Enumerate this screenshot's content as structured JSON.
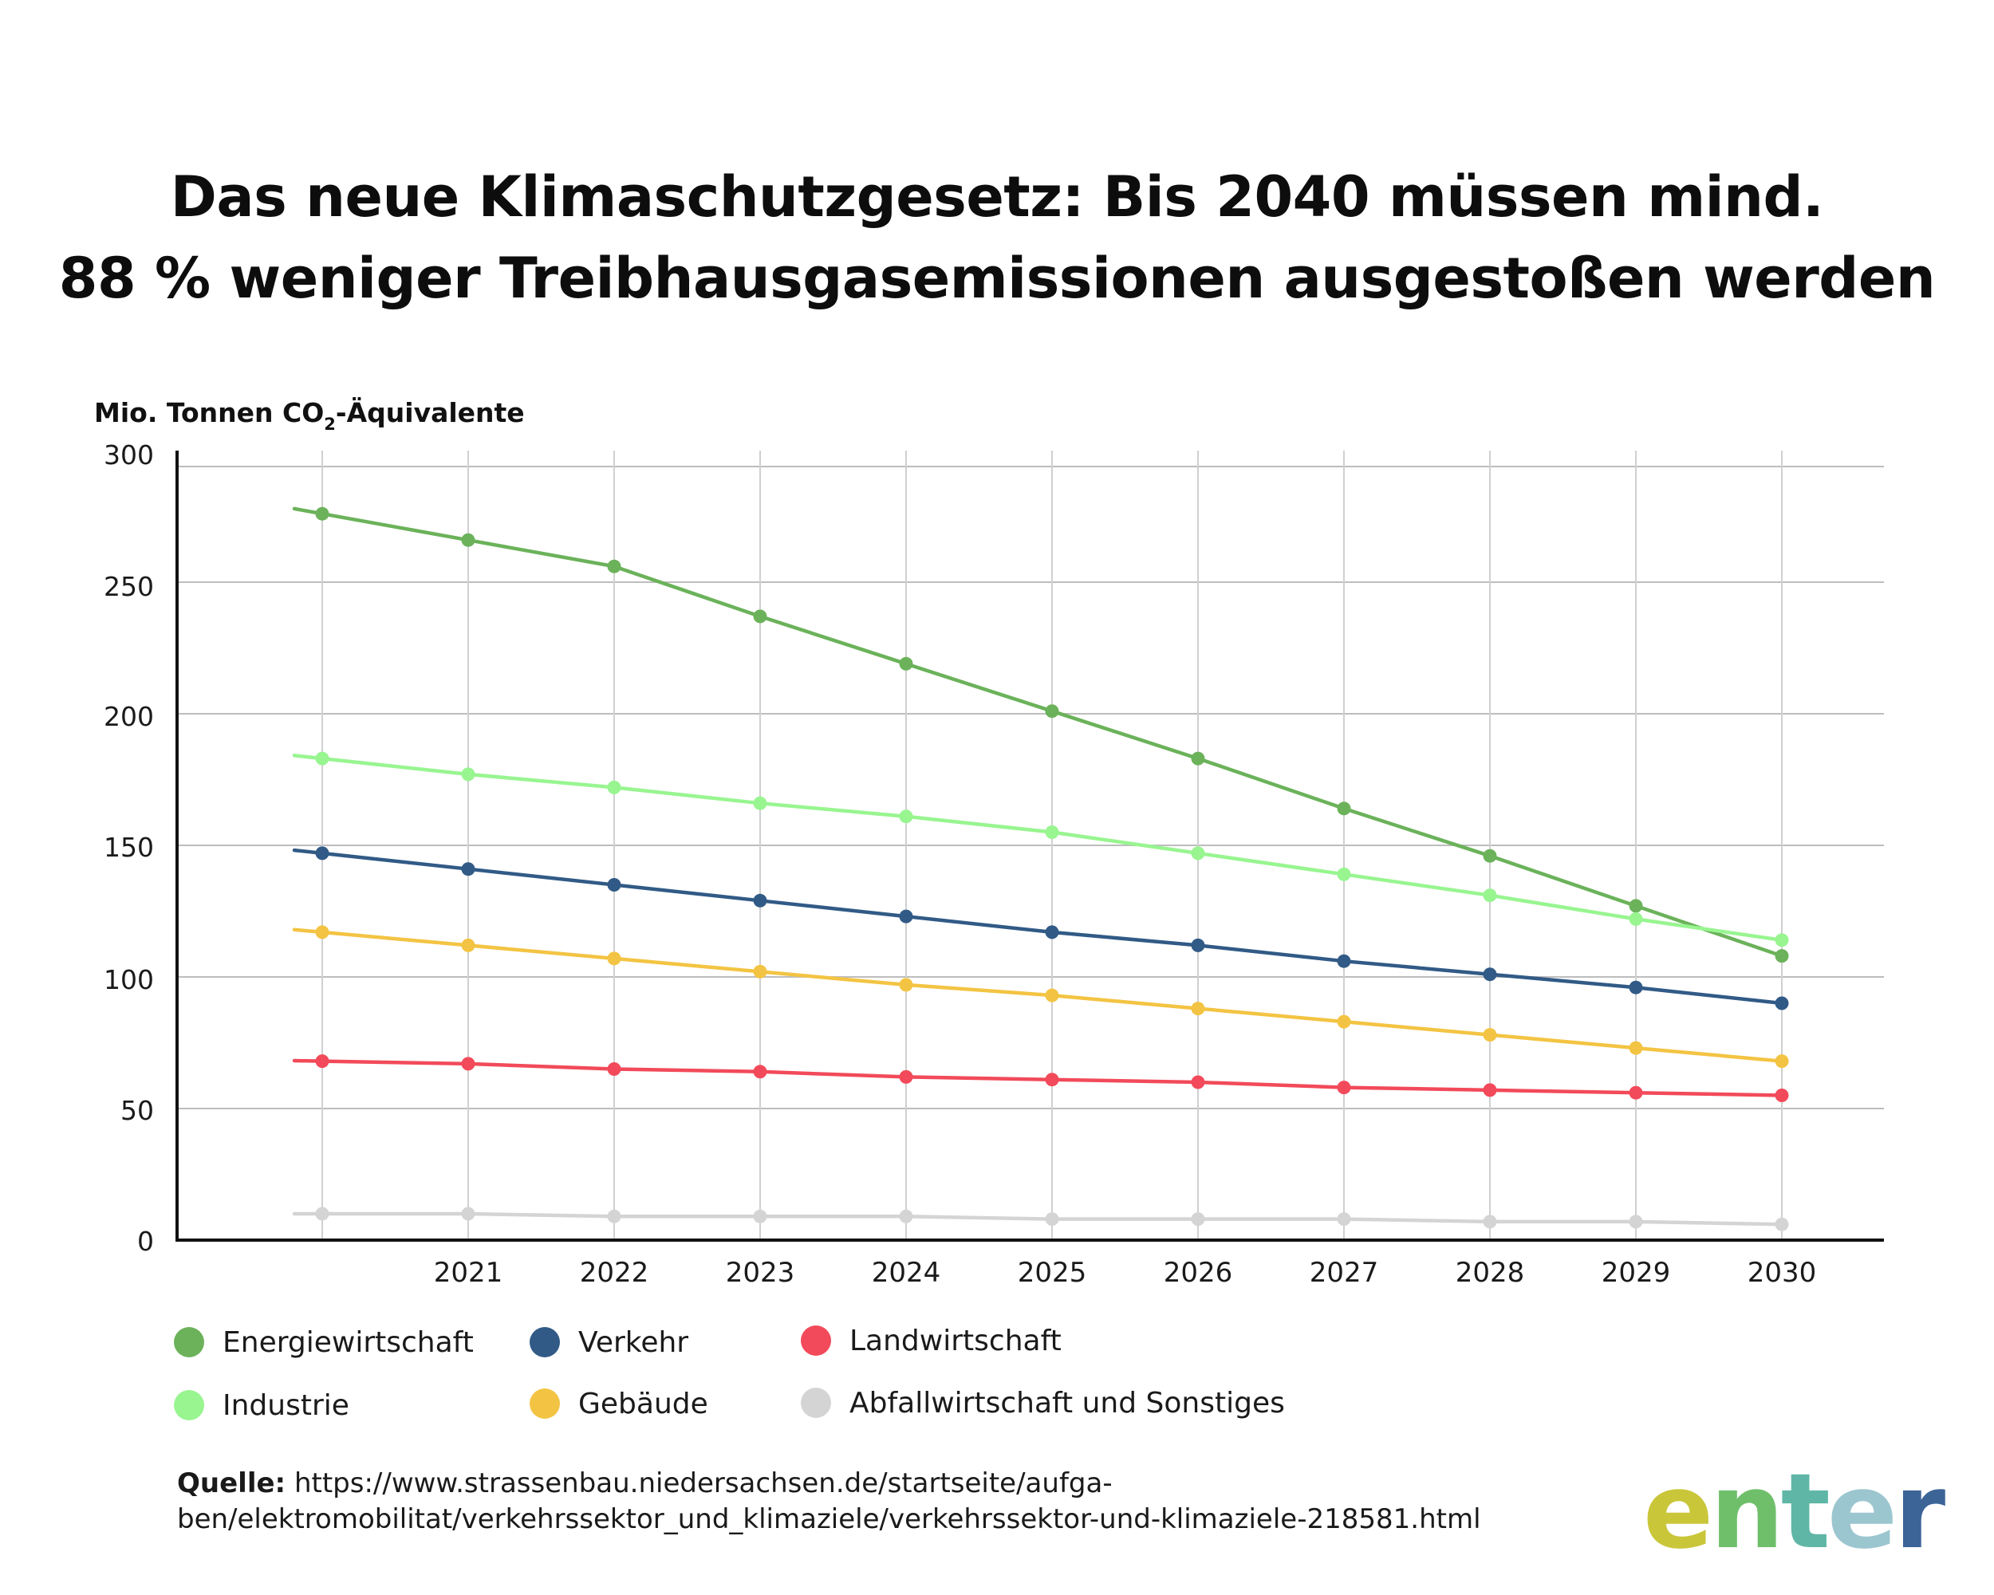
{
  "title": {
    "line1": "Das neue Klimaschutzgesetz: Bis 2040 müssen mind.",
    "line2": "88 % weniger Treibhausgasemissionen ausgestoßen werden"
  },
  "chart_data": {
    "type": "line",
    "ylabel_main": "Mio. Tonnen CO",
    "ylabel_sub": "2",
    "ylabel_rest": "-Äquivalente",
    "ylim": [
      0,
      300
    ],
    "yticks": [
      0,
      50,
      100,
      150,
      200,
      250,
      300
    ],
    "x_labels": [
      "",
      "2021",
      "2022",
      "2023",
      "2024",
      "2025",
      "2026",
      "2027",
      "2028",
      "2029",
      "2030"
    ],
    "x_values": [
      2020,
      2021,
      2022,
      2023,
      2024,
      2025,
      2026,
      2027,
      2028,
      2029,
      2030
    ],
    "grid": true,
    "series": [
      {
        "name": "Energiewirtschaft",
        "color": "#6bb25a",
        "values": [
          276,
          266,
          256,
          237,
          219,
          201,
          183,
          164,
          146,
          127,
          108
        ]
      },
      {
        "name": "Industrie",
        "color": "#98f590",
        "values": [
          183,
          177,
          172,
          166,
          161,
          155,
          147,
          139,
          131,
          122,
          114
        ]
      },
      {
        "name": "Verkehr",
        "color": "#315a86",
        "values": [
          147,
          141,
          135,
          129,
          123,
          117,
          112,
          106,
          101,
          96,
          90
        ]
      },
      {
        "name": "Gebäude",
        "color": "#f3c443",
        "values": [
          117,
          112,
          107,
          102,
          97,
          93,
          88,
          83,
          78,
          73,
          68
        ]
      },
      {
        "name": "Landwirtschaft",
        "color": "#f24a5a",
        "values": [
          68,
          67,
          65,
          64,
          62,
          61,
          60,
          58,
          57,
          56,
          55
        ]
      },
      {
        "name": "Abfallwirtschaft und Sonstiges",
        "color": "#d4d4d4",
        "values": [
          10,
          10,
          9,
          9,
          9,
          8,
          8,
          8,
          7,
          7,
          6
        ]
      }
    ]
  },
  "legend": [
    {
      "label": "Energiewirtschaft",
      "color": "#6bb25a"
    },
    {
      "label": "Verkehr",
      "color": "#315a86"
    },
    {
      "label": "Landwirtschaft",
      "color": "#f24a5a"
    },
    {
      "label": "Industrie",
      "color": "#98f590"
    },
    {
      "label": "Gebäude",
      "color": "#f3c443"
    },
    {
      "label": "Abfallwirtschaft und Sonstiges",
      "color": "#d4d4d4"
    }
  ],
  "source": {
    "label": "Quelle:",
    "line1": " https://www.strassenbau.niedersachsen.de/startseite/aufga-",
    "line2": "ben/elektromobilitat/verkehrssektor_und_klimaziele/verkehrssektor-und-klimaziele-218581.html"
  },
  "logo": {
    "text": "enter",
    "colors": [
      "#c9c63a",
      "#6fbf6a",
      "#5fb6a6",
      "#9cc6cf",
      "#3c6497"
    ]
  }
}
